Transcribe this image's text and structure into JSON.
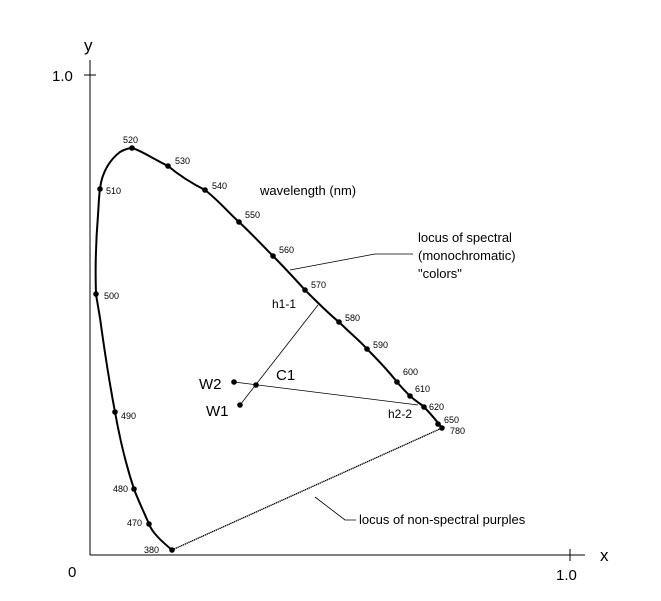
{
  "axes": {
    "x_label": "x",
    "y_label": "y",
    "origin_label": "0",
    "x_tick_label": "1.0",
    "y_tick_label": "1.0"
  },
  "wavelength_labels": [
    "520",
    "530",
    "540",
    "550",
    "560",
    "570",
    "580",
    "590",
    "600",
    "610",
    "620",
    "650",
    "780",
    "510",
    "500",
    "490",
    "480",
    "470",
    "380"
  ],
  "annotations": {
    "wavelength_title": "wavelength (nm)",
    "spectral_locus_line1": "locus of spectral",
    "spectral_locus_line2": "(monochromatic)",
    "spectral_locus_line3": "\"colors\"",
    "purples_locus": "locus of non-spectral purples"
  },
  "points": {
    "w1": "W1",
    "w2": "W2",
    "c1": "C1",
    "h1": "h1-1",
    "h2": "h2-2"
  }
}
